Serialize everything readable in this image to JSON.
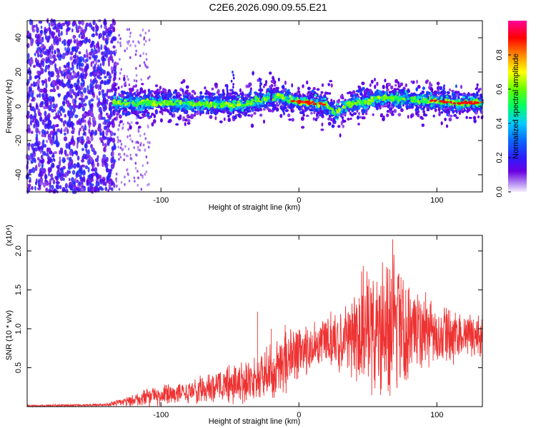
{
  "title": "C2E6.2026.090.09.55.E21",
  "chart_data": [
    {
      "type": "heatmap",
      "xlabel": "Height of straight line (km)",
      "ylabel": "Frequency (Hz)",
      "xlim": [
        -197,
        133
      ],
      "ylim": [
        -50,
        50
      ],
      "xticks": [
        -100,
        0,
        100
      ],
      "yticks": [
        -40,
        -20,
        0,
        20,
        40
      ],
      "colorbar": {
        "label": "Normalized spectral amplitude",
        "range": [
          0,
          1
        ],
        "ticks": [
          0.0,
          0.2,
          0.4,
          0.6,
          0.8
        ]
      },
      "centerline": [
        {
          "x": -135,
          "y": 2
        },
        {
          "x": -100,
          "y": 2
        },
        {
          "x": -60,
          "y": 1
        },
        {
          "x": -40,
          "y": 1
        },
        {
          "x": -25,
          "y": 4
        },
        {
          "x": -15,
          "y": 6
        },
        {
          "x": -5,
          "y": 3
        },
        {
          "x": 10,
          "y": 2
        },
        {
          "x": 20,
          "y": 1
        },
        {
          "x": 26,
          "y": -4
        },
        {
          "x": 35,
          "y": 1
        },
        {
          "x": 50,
          "y": 3
        },
        {
          "x": 60,
          "y": 5
        },
        {
          "x": 80,
          "y": 4
        },
        {
          "x": 100,
          "y": 3
        },
        {
          "x": 115,
          "y": 2
        },
        {
          "x": 133,
          "y": 2
        }
      ]
    },
    {
      "type": "line",
      "xlabel": "Height of straight line (km)",
      "ylabel": "SNR (10 * v/v)",
      "scale_label": "(x10⁴)",
      "xlim": [
        -197,
        133
      ],
      "ylim": [
        0,
        2.2
      ],
      "xticks": [
        -100,
        0,
        100
      ],
      "yticks": [
        0.5,
        1.0,
        1.5,
        2.0
      ],
      "color": "#ee3333",
      "envelope": [
        {
          "x": -197,
          "mean": 0.01,
          "spread": 0.02
        },
        {
          "x": -140,
          "mean": 0.02,
          "spread": 0.03
        },
        {
          "x": -120,
          "mean": 0.08,
          "spread": 0.12
        },
        {
          "x": -100,
          "mean": 0.15,
          "spread": 0.2
        },
        {
          "x": -80,
          "mean": 0.2,
          "spread": 0.24
        },
        {
          "x": -60,
          "mean": 0.25,
          "spread": 0.3
        },
        {
          "x": -40,
          "mean": 0.32,
          "spread": 0.4
        },
        {
          "x": -25,
          "mean": 0.38,
          "spread": 0.5
        },
        {
          "x": -15,
          "mean": 0.55,
          "spread": 0.6
        },
        {
          "x": 0,
          "mean": 0.7,
          "spread": 0.55
        },
        {
          "x": 20,
          "mean": 0.82,
          "spread": 0.5
        },
        {
          "x": 35,
          "mean": 0.92,
          "spread": 0.7
        },
        {
          "x": 50,
          "mean": 1.0,
          "spread": 1.3
        },
        {
          "x": 65,
          "mean": 1.0,
          "spread": 1.6
        },
        {
          "x": 80,
          "mean": 0.95,
          "spread": 0.9
        },
        {
          "x": 100,
          "mean": 0.92,
          "spread": 0.55
        },
        {
          "x": 133,
          "mean": 0.92,
          "spread": 0.4
        }
      ],
      "peak": {
        "x": 68,
        "y": 2.15
      }
    }
  ]
}
